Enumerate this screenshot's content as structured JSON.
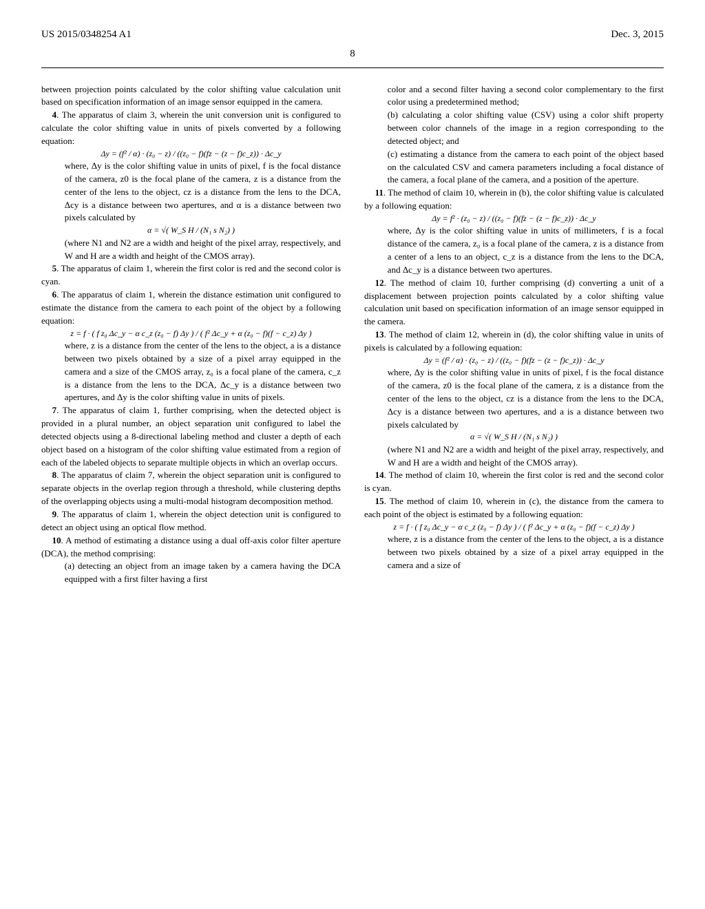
{
  "header": {
    "left": "US 2015/0348254 A1",
    "right": "Dec. 3, 2015"
  },
  "pagenum": "8",
  "col1": {
    "t1": "between projection points calculated by the color shifting value calculation unit based on specification information of an image sensor equipped in the camera.",
    "claim4": "4. The apparatus of claim 3, wherein the unit conversion unit is configured to calculate the color shifting value in units of pixels converted by a following equation:",
    "eq1": "Δy = (f² / α) · (z₀ − z) / ((z₀ − f)(fz − (z − f)c_z)) · Δc_y",
    "c4a": "where, Δy is the color shifting value in units of pixel, f is the focal distance of the camera, z0 is the focal plane of the camera, z is a distance from the center of the lens to the object, cz is a distance from the lens to the DCA, Δcy is a distance between two apertures, and α is a distance between two pixels calculated by",
    "eq2": "α = √( W_S H / (N₁ s N₂) )",
    "c4b": "(where N1 and N2 are a width and height of the pixel array, respectively, and W and H are a width and height of the CMOS array).",
    "claim5": "5. The apparatus of claim 1, wherein the first color is red and the second color is cyan.",
    "claim6": "6. The apparatus of claim 1, wherein the distance estimation unit configured to estimate the distance from the camera to each point of the object by a following equation:",
    "eq3": "z = f · ( f z₀ Δc_y − α c_z (z₀ − f) Δy ) / ( f² Δc_y + α (z₀ − f)(f − c_z) Δy )",
    "c6a": "where, z is a distance from the center of the lens to the object, a is a distance between two pixels obtained by a size of a pixel array equipped in the camera and a size of the CMOS array, z₀ is a focal plane of the camera, c_z is a distance from the lens to the DCA, Δc_y is a distance between two apertures, and Δy is the color shifting value in units of pixels.",
    "claim7": "7. The apparatus of claim 1, further comprising, when the detected object is provided in a plural number, an object separation unit configured to label the detected objects using a 8-directional labeling method and cluster a depth of each object based on a histogram of the color shifting value estimated from a region of each of the labeled objects to separate multiple objects in which an overlap occurs.",
    "claim8": "8. The apparatus of claim 7, wherein the object separation unit is configured to separate objects in the overlap region through a threshold, while clustering depths of the overlapping objects using a multi-modal histogram decomposition method.",
    "claim9": "9. The apparatus of claim 1, wherein the object detection unit is configured to detect an object using an optical flow method.",
    "claim10": "10. A method of estimating a distance using a dual off-axis color filter aperture (DCA), the method comprising:",
    "c10a": "(a) detecting an object from an image taken by a camera having the DCA equipped with a first filter having a first"
  },
  "col2": {
    "t1a": "color and a second filter having a second color complementary to the first color using a predetermined method;",
    "t1b": "(b) calculating a color shifting value (CSV) using a color shift property between color channels of the image in a region corresponding to the detected object; and",
    "t1c": "(c) estimating a distance from the camera to each point of the object based on the calculated CSV and camera parameters including a focal distance of the camera, a focal plane of the camera, and a position of the aperture.",
    "claim11": "11. The method of claim 10, wherein in (b), the color shifting value is calculated by a following equation:",
    "eq4": "Δy = f² · (z₀ − z) / ((z₀ − f)(fz − (z − f)c_z)) · Δc_y",
    "c11a": "where, Δy is the color shifting value in units of millimeters, f is a focal distance of the camera, z₀ is a focal plane of the camera, z is a distance from a center of a lens to an object, c_z is a distance from the lens to the DCA, and Δc_y is a distance between two apertures.",
    "claim12": "12. The method of claim 10, further comprising (d) converting a unit of a displacement between projection points calculated by a color shifting value calculation unit based on specification information of an image sensor equipped in the camera.",
    "claim13": "13. The method of claim 12, wherein in (d), the color shifting value in units of pixels is calculated by a following equation:",
    "eq5": "Δy = (f² / α) · (z₀ − z) / ((z₀ − f)(fz − (z − f)c_z)) · Δc_y",
    "c13a": "where, Δy is the color shifting value in units of pixel, f is the focal distance of the camera, z0 is the focal plane of the camera, z is a distance from the center of the lens to the object, cz is a distance from the lens to the DCA, Δcy is a distance between two apertures, and a is a distance between two pixels calculated by",
    "eq6": "α = √( W_S H / (N₁ s N₂) )",
    "c13b": "(where N1 and N2 are a width and height of the pixel array, respectively, and W and H are a width and height of the CMOS array).",
    "claim14": "14. The method of claim 10, wherein the first color is red and the second color is cyan.",
    "claim15": "15. The method of claim 10, wherein in (c), the distance from the camera to each point of the object is estimated by a following equation:",
    "eq7": "z = f · ( f z₀ Δc_y − α c_z (z₀ − f) Δy ) / ( f² Δc_y + α (z₀ − f)(f − c_z) Δy )",
    "c15a": "where, z is a distance from the center of the lens to the object, a is a distance between two pixels obtained by a size of a pixel array equipped in the camera and a size of"
  }
}
